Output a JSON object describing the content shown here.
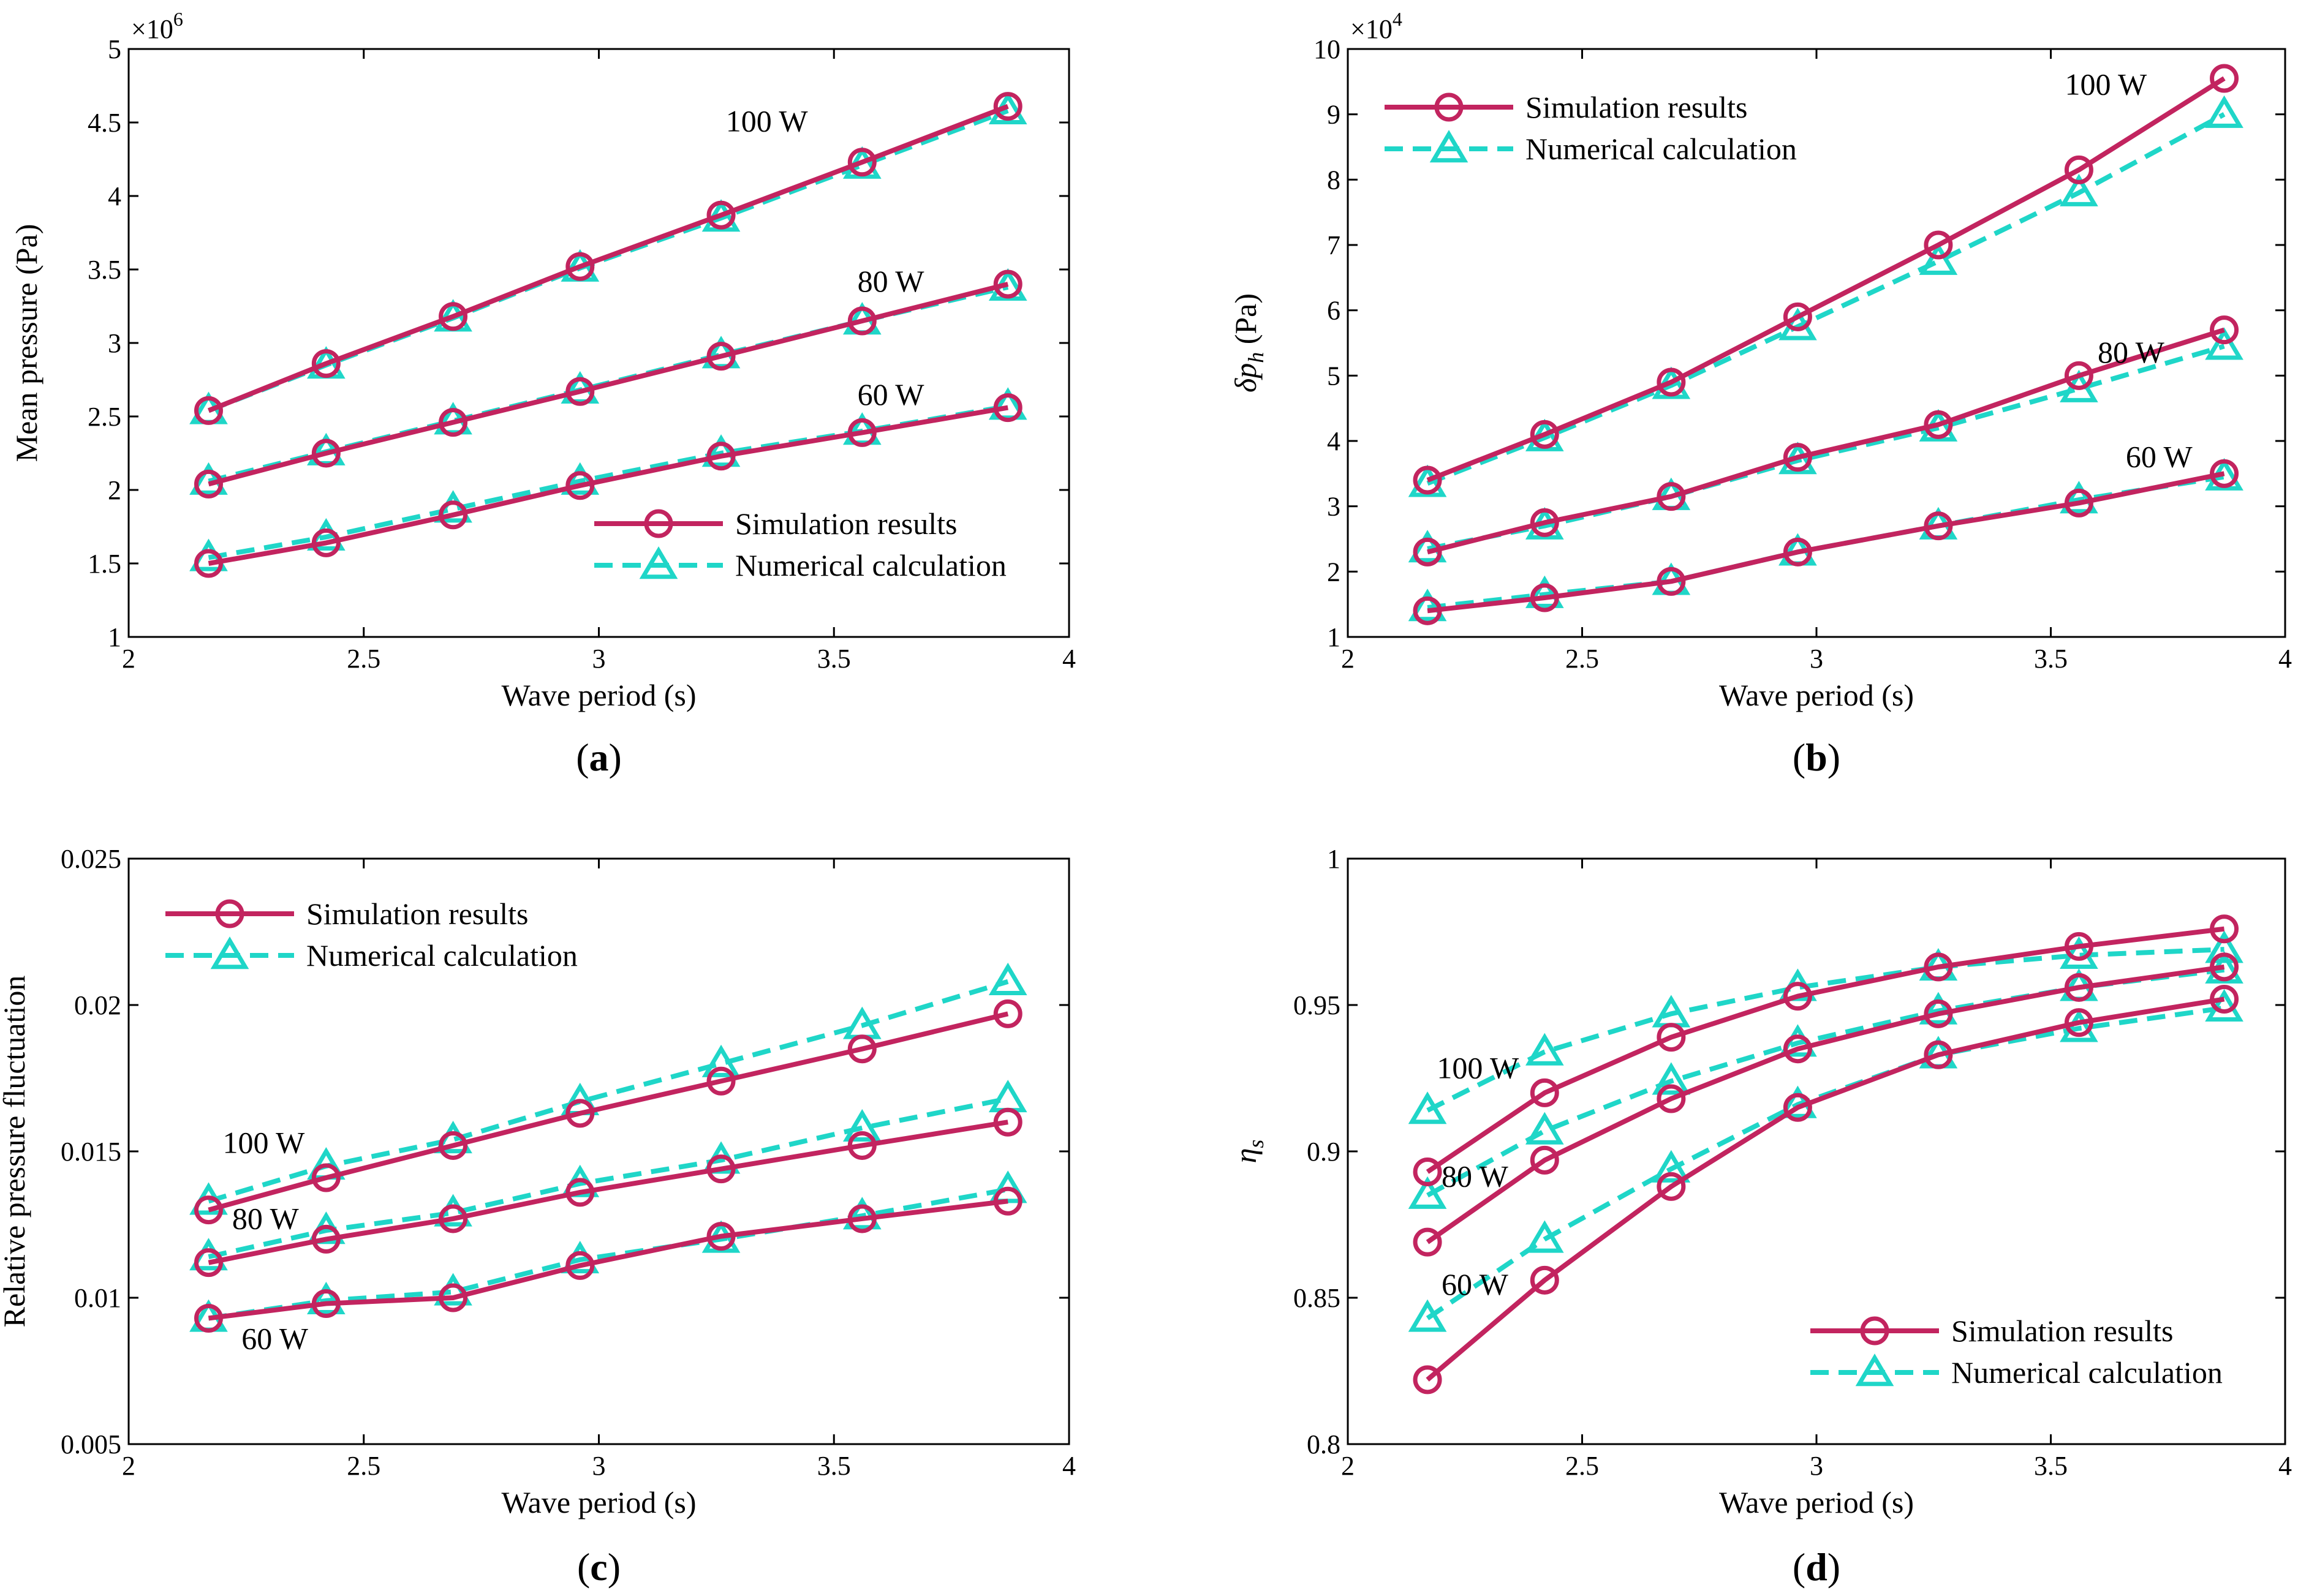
{
  "colors": {
    "simulation": "#c2245f",
    "numerical": "#1fd6c8",
    "axis": "#000000"
  },
  "legend": {
    "simulation": "Simulation results",
    "numerical": "Numerical calculation"
  },
  "chart_data": [
    {
      "type": "line",
      "panel_label": "a",
      "xlabel": "Wave period (s)",
      "ylabel": "Mean pressure (Pa)",
      "xlim": [
        2,
        4
      ],
      "ylim": [
        1,
        5
      ],
      "xticks": [
        2,
        2.5,
        3,
        3.5,
        4
      ],
      "yticks": [
        1,
        1.5,
        2,
        2.5,
        3,
        3.5,
        4,
        4.5,
        5
      ],
      "multiplier": {
        "base": "×10",
        "exponent": "6"
      },
      "legend_position": "bottom-right",
      "x": [
        2.17,
        2.42,
        2.69,
        2.96,
        3.26,
        3.56,
        3.87
      ],
      "series": [
        {
          "name": "Simulation results",
          "group": "100 W",
          "style": "sim",
          "values": [
            2.54,
            2.86,
            3.18,
            3.52,
            3.87,
            4.23,
            4.61
          ]
        },
        {
          "name": "Numerical calculation",
          "group": "100 W",
          "style": "num",
          "values": [
            2.54,
            2.85,
            3.17,
            3.51,
            3.85,
            4.21,
            4.58
          ]
        },
        {
          "name": "Simulation results",
          "group": "80 W",
          "style": "sim",
          "values": [
            2.04,
            2.25,
            2.46,
            2.67,
            2.91,
            3.15,
            3.4
          ]
        },
        {
          "name": "Numerical calculation",
          "group": "80 W",
          "style": "num",
          "values": [
            2.06,
            2.26,
            2.47,
            2.68,
            2.92,
            3.15,
            3.38
          ]
        },
        {
          "name": "Simulation results",
          "group": "60 W",
          "style": "sim",
          "values": [
            1.5,
            1.64,
            1.83,
            2.03,
            2.23,
            2.39,
            2.56
          ]
        },
        {
          "name": "Numerical calculation",
          "group": "60 W",
          "style": "num",
          "values": [
            1.54,
            1.68,
            1.87,
            2.06,
            2.25,
            2.4,
            2.57
          ]
        }
      ],
      "annotations": [
        {
          "text": "100 W",
          "x": 3.27,
          "y": 4.44
        },
        {
          "text": "80 W",
          "x": 3.55,
          "y": 3.35
        },
        {
          "text": "60 W",
          "x": 3.55,
          "y": 2.58
        }
      ]
    },
    {
      "type": "line",
      "panel_label": "b",
      "xlabel": "Wave period (s)",
      "ylabel_main": "δp",
      "ylabel_sub": "h",
      "ylabel_unit": " (Pa)",
      "xlim": [
        2,
        4
      ],
      "ylim": [
        1,
        10
      ],
      "xticks": [
        2,
        2.5,
        3,
        3.5,
        4
      ],
      "yticks": [
        1,
        2,
        3,
        4,
        5,
        6,
        7,
        8,
        9,
        10
      ],
      "multiplier": {
        "base": "×10",
        "exponent": "4"
      },
      "legend_position": "top-left",
      "x": [
        2.17,
        2.42,
        2.69,
        2.96,
        3.26,
        3.56,
        3.87
      ],
      "series": [
        {
          "name": "Simulation results",
          "group": "100 W",
          "style": "sim",
          "values": [
            3.4,
            4.1,
            4.9,
            5.9,
            7.0,
            8.15,
            9.55
          ]
        },
        {
          "name": "Numerical calculation",
          "group": "100 W",
          "style": "num",
          "values": [
            3.35,
            4.05,
            4.85,
            5.75,
            6.75,
            7.8,
            9.0
          ]
        },
        {
          "name": "Simulation results",
          "group": "80 W",
          "style": "sim",
          "values": [
            2.3,
            2.75,
            3.15,
            3.75,
            4.25,
            5.0,
            5.7
          ]
        },
        {
          "name": "Numerical calculation",
          "group": "80 W",
          "style": "num",
          "values": [
            2.35,
            2.7,
            3.15,
            3.7,
            4.2,
            4.8,
            5.45
          ]
        },
        {
          "name": "Simulation results",
          "group": "60 W",
          "style": "sim",
          "values": [
            1.4,
            1.6,
            1.85,
            2.3,
            2.7,
            3.05,
            3.5
          ]
        },
        {
          "name": "Numerical calculation",
          "group": "60 W",
          "style": "num",
          "values": [
            1.45,
            1.65,
            1.85,
            2.3,
            2.7,
            3.1,
            3.45
          ]
        }
      ],
      "annotations": [
        {
          "text": "100 W",
          "x": 3.53,
          "y": 9.3
        },
        {
          "text": "80 W",
          "x": 3.6,
          "y": 5.2
        },
        {
          "text": "60 W",
          "x": 3.66,
          "y": 3.6
        }
      ]
    },
    {
      "type": "line",
      "panel_label": "c",
      "xlabel": "Wave period (s)",
      "ylabel": "Relative pressure fluctuation",
      "xlim": [
        2,
        4
      ],
      "ylim": [
        0.005,
        0.025
      ],
      "xticks": [
        2,
        2.5,
        3,
        3.5,
        4
      ],
      "yticks": [
        0.005,
        0.01,
        0.015,
        0.02,
        0.025
      ],
      "legend_position": "top-left",
      "x": [
        2.17,
        2.42,
        2.69,
        2.96,
        3.26,
        3.56,
        3.87
      ],
      "series": [
        {
          "name": "Simulation results",
          "group": "100 W",
          "style": "sim",
          "values": [
            0.013,
            0.0141,
            0.0152,
            0.0163,
            0.0174,
            0.0185,
            0.0197
          ]
        },
        {
          "name": "Numerical calculation",
          "group": "100 W",
          "style": "num",
          "values": [
            0.0133,
            0.0145,
            0.0154,
            0.0167,
            0.018,
            0.0193,
            0.0208
          ]
        },
        {
          "name": "Simulation results",
          "group": "80 W",
          "style": "sim",
          "values": [
            0.0112,
            0.012,
            0.0127,
            0.0136,
            0.0144,
            0.0152,
            0.016
          ]
        },
        {
          "name": "Numerical calculation",
          "group": "80 W",
          "style": "num",
          "values": [
            0.0114,
            0.0123,
            0.0129,
            0.0139,
            0.0147,
            0.0158,
            0.0168
          ]
        },
        {
          "name": "Simulation results",
          "group": "60 W",
          "style": "sim",
          "values": [
            0.0093,
            0.0098,
            0.01,
            0.0111,
            0.0121,
            0.0127,
            0.0133
          ]
        },
        {
          "name": "Numerical calculation",
          "group": "60 W",
          "style": "num",
          "values": [
            0.0093,
            0.0099,
            0.0102,
            0.0113,
            0.012,
            0.0128,
            0.0137
          ]
        }
      ],
      "annotations": [
        {
          "text": "100 W",
          "x": 2.2,
          "y": 0.01495
        },
        {
          "text": "80 W",
          "x": 2.22,
          "y": 0.01235
        },
        {
          "text": "60 W",
          "x": 2.24,
          "y": 0.00825
        }
      ]
    },
    {
      "type": "line",
      "panel_label": "d",
      "xlabel": "Wave period (s)",
      "ylabel_main": "η",
      "ylabel_sub": "s",
      "ylabel_unit": "",
      "xlim": [
        2,
        4
      ],
      "ylim": [
        0.8,
        1
      ],
      "xticks": [
        2,
        2.5,
        3,
        3.5,
        4
      ],
      "yticks": [
        0.8,
        0.85,
        0.9,
        0.95,
        1
      ],
      "legend_position": "bottom-right",
      "x": [
        2.17,
        2.42,
        2.69,
        2.96,
        3.26,
        3.56,
        3.87
      ],
      "series": [
        {
          "name": "Simulation results",
          "group": "100 W",
          "style": "sim",
          "values": [
            0.893,
            0.92,
            0.939,
            0.953,
            0.963,
            0.97,
            0.976
          ]
        },
        {
          "name": "Numerical calculation",
          "group": "100 W",
          "style": "num",
          "values": [
            0.914,
            0.934,
            0.947,
            0.956,
            0.963,
            0.967,
            0.969
          ]
        },
        {
          "name": "Simulation results",
          "group": "80 W",
          "style": "sim",
          "values": [
            0.869,
            0.897,
            0.918,
            0.935,
            0.947,
            0.956,
            0.963
          ]
        },
        {
          "name": "Numerical calculation",
          "group": "80 W",
          "style": "num",
          "values": [
            0.885,
            0.907,
            0.924,
            0.937,
            0.948,
            0.956,
            0.962
          ]
        },
        {
          "name": "Simulation results",
          "group": "60 W",
          "style": "sim",
          "values": [
            0.822,
            0.856,
            0.888,
            0.915,
            0.933,
            0.944,
            0.952
          ]
        },
        {
          "name": "Numerical calculation",
          "group": "60 W",
          "style": "num",
          "values": [
            0.843,
            0.87,
            0.894,
            0.916,
            0.933,
            0.942,
            0.949
          ]
        }
      ],
      "annotations": [
        {
          "text": "100 W",
          "x": 2.19,
          "y": 0.925
        },
        {
          "text": "80 W",
          "x": 2.2,
          "y": 0.888
        },
        {
          "text": "60 W",
          "x": 2.2,
          "y": 0.851
        }
      ]
    }
  ]
}
